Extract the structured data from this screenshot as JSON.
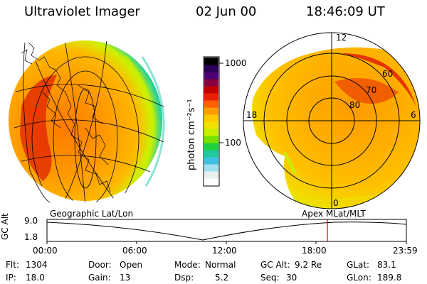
{
  "header": {
    "instrument": "Ultraviolet Imager",
    "date": "02 Jun 00",
    "time": "18:46:09 UT"
  },
  "colorbar": {
    "label": "photon cm⁻²s⁻¹",
    "ticks": [
      "1000",
      "100"
    ],
    "colors": [
      "#000000",
      "#2a0058",
      "#4a0070",
      "#8a0040",
      "#c00000",
      "#e82000",
      "#ff6000",
      "#ff9a00",
      "#ffc800",
      "#f0e000",
      "#c8f000",
      "#78e000",
      "#20d040",
      "#20c8a0",
      "#40c0e0",
      "#a0e0f0",
      "#e8f0f0",
      "#ffffff"
    ]
  },
  "panels": {
    "left_label": "Geographic Lat/Lon",
    "right_label": "Apex MLat/MLT",
    "mlt_labels": {
      "top": "12",
      "left": "18",
      "right": "6",
      "bottom": "0"
    },
    "mlat_labels": [
      "60",
      "70",
      "80"
    ]
  },
  "timeline": {
    "axis_label": "GC Alt",
    "y_ticks": [
      "9.0",
      "1.8"
    ],
    "x_ticks": [
      "00:00",
      "06:00",
      "12:00",
      "18:00",
      "23:59"
    ],
    "marker_color": "#cc0000"
  },
  "info": {
    "flt_label": "Flt:",
    "flt": "1304",
    "ip_label": "IP:",
    "ip": "18.0",
    "door_label": "Door:",
    "door": "Open",
    "gain_label": "Gain:",
    "gain": "13",
    "mode_label": "Mode:",
    "mode": "Normal",
    "dsp_label": "Dsp:",
    "dsp": "5.2",
    "gcalt_label": "GC Alt:",
    "gcalt": "9.2 Re",
    "seq_label": "Seq:",
    "seq": "30",
    "glat_label": "GLat:",
    "glat": "83.1",
    "glon_label": "GLon:",
    "glon": "189.8"
  }
}
